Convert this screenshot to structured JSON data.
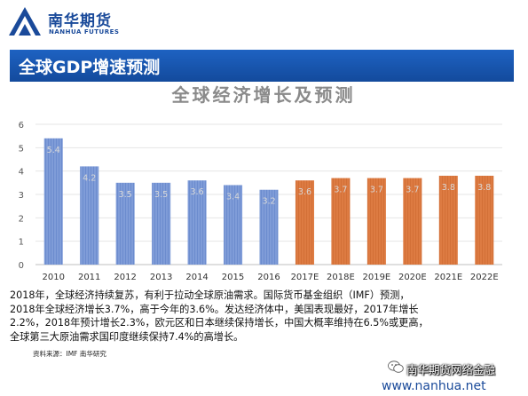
{
  "header": {
    "logo_cn": "南华期货",
    "logo_en": "NANHUA FUTURES"
  },
  "slide": {
    "title": "全球GDP增速预测"
  },
  "chart_data": {
    "type": "bar",
    "title": "全球经济增长及预测",
    "categories": [
      "2010",
      "2011",
      "2012",
      "2013",
      "2014",
      "2015",
      "2016",
      "2017E",
      "2018E",
      "2019E",
      "2020E",
      "2021E",
      "2022E"
    ],
    "values": [
      5.4,
      4.2,
      3.5,
      3.5,
      3.6,
      3.4,
      3.2,
      3.6,
      3.7,
      3.7,
      3.7,
      3.8,
      3.8
    ],
    "data_labels": [
      "5.4",
      "4.2",
      "3.5",
      "3.5",
      "3.6",
      "3.4",
      "3.2",
      "3.6",
      "3.7",
      "3.7",
      "3.7",
      "3.8",
      "3.8"
    ],
    "ylim": [
      0,
      6
    ],
    "yticks": [
      "0",
      "1",
      "2",
      "3",
      "4",
      "5",
      "6"
    ],
    "grid": true,
    "colors": {
      "historical": "#6f8fd0",
      "forecast": "#d9733a"
    }
  },
  "body": {
    "lines": [
      "2018年，全球经济持续复苏，有利于拉动全球原油需求。国际货币基金组织（IMF）预测，",
      "2018年全球经济增长3.7%，高于今年的3.6%。发达经济体中，美国表现最好，2017年增长",
      "2.2%，2018年预计增长2.3%，欧元区和日本继续保持增长，中国大概率维持在6.5%或更高，",
      "全球第三大原油需求国印度继续保持7.4%的高增长。"
    ]
  },
  "source": "资料来源：IMF 南华研究",
  "watermark": {
    "text": "南华期货网络金融"
  },
  "footer": {
    "url": "www.nanhua.net"
  }
}
